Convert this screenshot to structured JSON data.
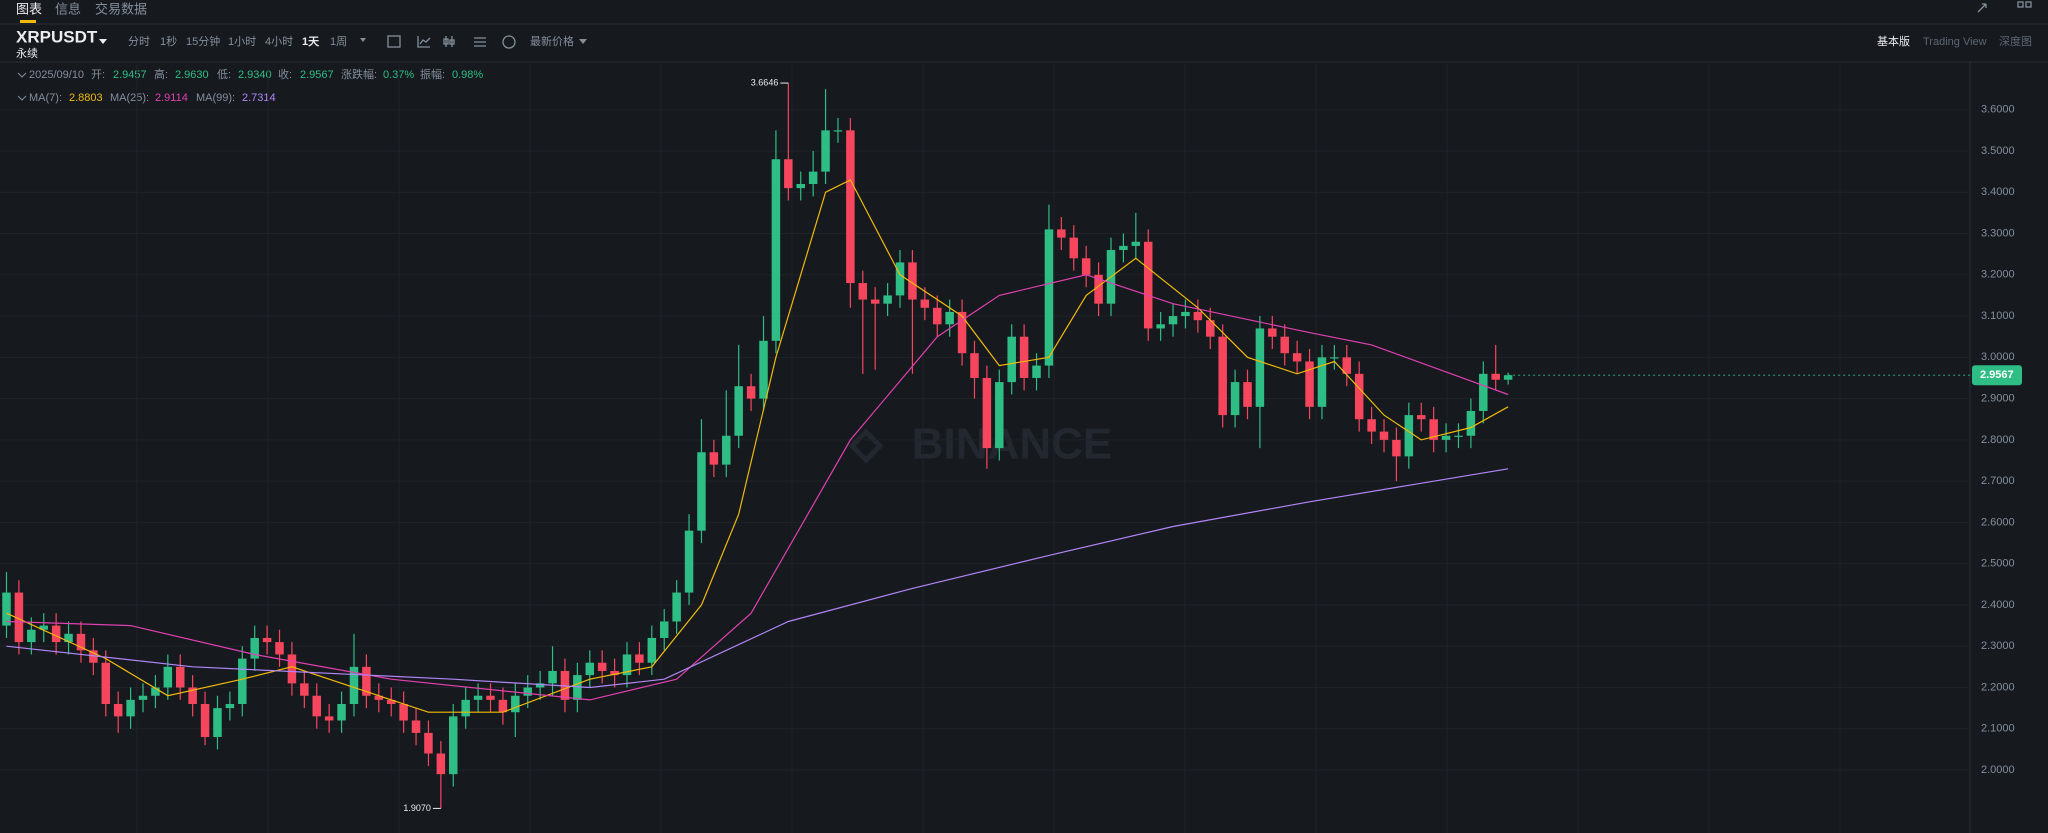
{
  "tabs": [
    "图表",
    "信息",
    "交易数据"
  ],
  "symbol": "XRPUSDT",
  "contract": "永续",
  "intervals": [
    "分时",
    "1秒",
    "15分钟",
    "1小时",
    "4小时",
    "1天",
    "1周"
  ],
  "price_type": "最新价格",
  "views": [
    "基本版",
    "Trading View",
    "深度图"
  ],
  "ohlc_info": {
    "date": "2025/09/10",
    "items": [
      {
        "label": "开:",
        "value": "2.9457"
      },
      {
        "label": "高:",
        "value": "2.9630"
      },
      {
        "label": "低:",
        "value": "2.9340"
      },
      {
        "label": "收:",
        "value": "2.9567"
      },
      {
        "label": "涨跌幅:",
        "value": "0.37%"
      },
      {
        "label": "振幅:",
        "value": "0.98%"
      }
    ]
  },
  "ma_info": [
    {
      "label": "MA(7):",
      "value": "2.8803"
    },
    {
      "label": "MA(25):",
      "value": "2.9114"
    },
    {
      "label": "MA(99):",
      "value": "2.7314"
    }
  ],
  "watermark": "BINANCE",
  "chart_data": {
    "type": "candlestick",
    "up_color": "#2ebd85",
    "down_color": "#f6465d",
    "open": [
      2.35,
      2.43,
      2.31,
      2.34,
      2.35,
      2.31,
      2.33,
      2.29,
      2.26,
      2.16,
      2.13,
      2.17,
      2.18,
      2.2,
      2.25,
      2.2,
      2.16,
      2.08,
      2.15,
      2.16,
      2.27,
      2.32,
      2.31,
      2.28,
      2.21,
      2.18,
      2.13,
      2.12,
      2.16,
      2.25,
      2.18,
      2.17,
      2.16,
      2.12,
      2.09,
      2.04,
      1.99,
      2.13,
      2.17,
      2.18,
      2.17,
      2.14,
      2.18,
      2.2,
      2.21,
      2.24,
      2.17,
      2.23,
      2.26,
      2.24,
      2.23,
      2.28,
      2.26,
      2.32,
      2.36,
      2.43,
      2.58,
      2.77,
      2.74,
      2.81,
      2.93,
      2.9,
      3.04,
      3.48,
      3.41,
      3.42,
      3.45,
      3.55,
      3.55,
      3.18,
      3.14,
      3.13,
      3.15,
      3.23,
      3.14,
      3.12,
      3.08,
      3.11,
      3.01,
      2.95,
      2.78,
      2.94,
      3.05,
      2.95,
      2.98,
      3.31,
      3.29,
      3.24,
      3.2,
      3.13,
      3.26,
      3.27,
      3.28,
      3.07,
      3.08,
      3.1,
      3.11,
      3.09,
      3.05,
      2.86,
      2.94,
      2.88,
      3.07,
      3.05,
      3.01,
      2.99,
      2.88,
      3.0,
      3.0,
      2.96,
      2.85,
      2.82,
      2.8,
      2.76,
      2.86,
      2.85,
      2.8,
      2.81,
      2.81,
      2.87,
      2.96,
      2.9457
    ],
    "high": [
      2.48,
      2.46,
      2.37,
      2.38,
      2.38,
      2.36,
      2.36,
      2.32,
      2.29,
      2.19,
      2.2,
      2.21,
      2.23,
      2.28,
      2.28,
      2.23,
      2.19,
      2.18,
      2.19,
      2.3,
      2.35,
      2.35,
      2.34,
      2.31,
      2.24,
      2.21,
      2.16,
      2.19,
      2.33,
      2.28,
      2.21,
      2.2,
      2.19,
      2.15,
      2.12,
      2.07,
      2.16,
      2.2,
      2.21,
      2.21,
      2.2,
      2.21,
      2.23,
      2.24,
      2.3,
      2.27,
      2.26,
      2.29,
      2.29,
      2.27,
      2.31,
      2.31,
      2.35,
      2.39,
      2.46,
      2.62,
      2.85,
      2.8,
      2.92,
      3.03,
      2.96,
      3.1,
      3.55,
      3.6646,
      3.45,
      3.5,
      3.65,
      3.58,
      3.58,
      3.21,
      3.17,
      3.18,
      3.26,
      3.26,
      3.17,
      3.15,
      3.14,
      3.14,
      3.04,
      2.98,
      2.97,
      3.08,
      3.08,
      3.01,
      3.37,
      3.34,
      3.32,
      3.27,
      3.23,
      3.29,
      3.3,
      3.35,
      3.31,
      3.11,
      3.13,
      3.14,
      3.14,
      3.12,
      3.08,
      2.97,
      2.97,
      3.1,
      3.1,
      3.08,
      3.04,
      3.02,
      3.03,
      3.03,
      3.03,
      2.99,
      2.88,
      2.85,
      2.83,
      2.89,
      2.89,
      2.88,
      2.84,
      2.84,
      2.9,
      2.99,
      3.03,
      2.963
    ],
    "low": [
      2.32,
      2.28,
      2.28,
      2.31,
      2.28,
      2.28,
      2.26,
      2.23,
      2.13,
      2.09,
      2.1,
      2.14,
      2.15,
      2.17,
      2.17,
      2.13,
      2.06,
      2.05,
      2.12,
      2.13,
      2.24,
      2.28,
      2.25,
      2.18,
      2.15,
      2.1,
      2.09,
      2.09,
      2.13,
      2.15,
      2.14,
      2.13,
      2.09,
      2.06,
      2.01,
      1.907,
      1.96,
      2.1,
      2.14,
      2.14,
      2.11,
      2.08,
      2.15,
      2.17,
      2.18,
      2.14,
      2.14,
      2.2,
      2.21,
      2.2,
      2.2,
      2.23,
      2.23,
      2.29,
      2.33,
      2.4,
      2.55,
      2.71,
      2.71,
      2.78,
      2.87,
      2.87,
      3.01,
      3.38,
      3.38,
      3.39,
      3.42,
      3.52,
      3.12,
      2.96,
      2.97,
      3.1,
      3.12,
      2.96,
      3.09,
      3.05,
      3.05,
      2.98,
      2.9,
      2.73,
      2.75,
      2.91,
      2.92,
      2.92,
      2.95,
      3.26,
      3.21,
      3.17,
      3.1,
      3.1,
      3.23,
      3.24,
      3.04,
      3.04,
      3.05,
      3.07,
      3.06,
      3.02,
      2.83,
      2.83,
      2.85,
      2.78,
      3.02,
      2.98,
      2.96,
      2.85,
      2.85,
      2.97,
      2.93,
      2.82,
      2.79,
      2.77,
      2.7,
      2.73,
      2.82,
      2.77,
      2.77,
      2.78,
      2.78,
      2.84,
      2.92,
      2.934
    ],
    "close": [
      2.43,
      2.31,
      2.34,
      2.35,
      2.31,
      2.33,
      2.29,
      2.26,
      2.16,
      2.13,
      2.17,
      2.18,
      2.2,
      2.25,
      2.2,
      2.16,
      2.08,
      2.15,
      2.16,
      2.27,
      2.32,
      2.31,
      2.28,
      2.21,
      2.18,
      2.13,
      2.12,
      2.16,
      2.25,
      2.18,
      2.17,
      2.16,
      2.12,
      2.09,
      2.04,
      1.99,
      2.13,
      2.17,
      2.18,
      2.17,
      2.14,
      2.18,
      2.2,
      2.21,
      2.24,
      2.17,
      2.23,
      2.26,
      2.24,
      2.23,
      2.28,
      2.26,
      2.32,
      2.36,
      2.43,
      2.58,
      2.77,
      2.74,
      2.81,
      2.93,
      2.9,
      3.04,
      3.48,
      3.41,
      3.42,
      3.45,
      3.55,
      3.55,
      3.18,
      3.14,
      3.13,
      3.15,
      3.23,
      3.14,
      3.12,
      3.08,
      3.11,
      3.01,
      2.95,
      2.78,
      2.94,
      3.05,
      2.95,
      2.98,
      3.31,
      3.29,
      3.24,
      3.2,
      3.13,
      3.26,
      3.27,
      3.28,
      3.07,
      3.08,
      3.1,
      3.11,
      3.09,
      3.05,
      2.86,
      2.94,
      2.88,
      3.07,
      3.05,
      3.01,
      2.99,
      2.88,
      3.0,
      3.0,
      2.96,
      2.85,
      2.82,
      2.8,
      2.76,
      2.86,
      2.85,
      2.8,
      2.81,
      2.81,
      2.87,
      2.96,
      2.9457,
      2.9567
    ],
    "ma_lines": [
      {
        "color": "#f0b90b",
        "x": [
          0,
          8,
          13,
          19,
          23,
          29,
          34,
          40,
          47,
          52,
          56,
          59,
          62,
          66,
          68,
          72,
          77,
          80,
          84,
          87,
          91,
          96,
          100,
          104,
          107,
          111,
          114,
          118,
          121
        ],
        "values": [
          2.38,
          2.27,
          2.18,
          2.22,
          2.25,
          2.19,
          2.14,
          2.14,
          2.22,
          2.25,
          2.4,
          2.62,
          3.0,
          3.4,
          3.43,
          3.2,
          3.1,
          2.98,
          3.0,
          3.15,
          3.24,
          3.12,
          3.0,
          2.96,
          2.99,
          2.86,
          2.8,
          2.83,
          2.88
        ]
      },
      {
        "color": "#e040b0",
        "x": [
          0,
          10,
          20,
          31,
          47,
          54,
          60,
          68,
          75,
          80,
          87,
          94,
          105,
          110,
          121
        ],
        "values": [
          2.36,
          2.35,
          2.28,
          2.22,
          2.17,
          2.22,
          2.38,
          2.8,
          3.05,
          3.15,
          3.2,
          3.13,
          3.06,
          3.03,
          2.91
        ]
      },
      {
        "color": "#b185f7",
        "x": [
          0,
          15,
          36,
          47,
          53,
          63,
          73,
          84,
          94,
          105,
          113,
          121
        ],
        "values": [
          2.3,
          2.25,
          2.22,
          2.2,
          2.22,
          2.36,
          2.44,
          2.52,
          2.59,
          2.65,
          2.69,
          2.73
        ]
      }
    ],
    "ylim": [
      1.8474,
      3.7156
    ],
    "yticks": [
      {
        "value": 2.0,
        "label": "2.0000"
      },
      {
        "value": 2.1,
        "label": "2.1000"
      },
      {
        "value": 2.2,
        "label": "2.2000"
      },
      {
        "value": 2.3,
        "label": "2.3000"
      },
      {
        "value": 2.4,
        "label": "2.4000"
      },
      {
        "value": 2.5,
        "label": "2.5000"
      },
      {
        "value": 2.6,
        "label": "2.6000"
      },
      {
        "value": 2.7,
        "label": "2.7000"
      },
      {
        "value": 2.8,
        "label": "2.8000"
      },
      {
        "value": 2.9,
        "label": "2.9000"
      },
      {
        "value": 3.0,
        "label": "3.0000"
      },
      {
        "value": 3.1,
        "label": "3.1000"
      },
      {
        "value": 3.2,
        "label": "3.2000"
      },
      {
        "value": 3.3,
        "label": "3.3000"
      },
      {
        "value": 3.4,
        "label": "3.4000"
      },
      {
        "value": 3.5,
        "label": "3.5000"
      },
      {
        "value": 3.6,
        "label": "3.6000"
      }
    ],
    "grid": true,
    "last_price": {
      "value": 2.9567,
      "label": "2.9567"
    },
    "annotations": [
      {
        "index": 63,
        "value": 3.6646,
        "label": "3.6646"
      },
      {
        "index": 35,
        "value": 1.907,
        "label": "1.9070"
      }
    ]
  }
}
